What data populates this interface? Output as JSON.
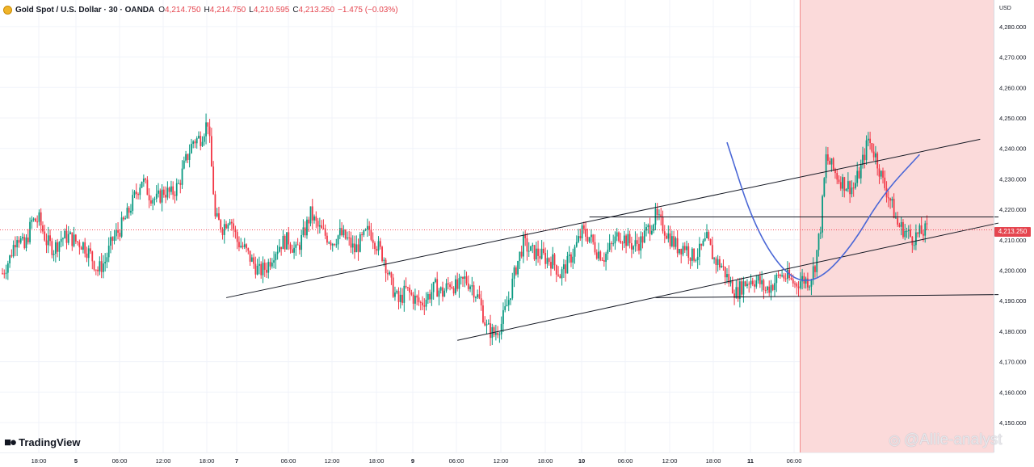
{
  "header": {
    "title": "Gold Spot / U.S. Dollar · 30 · OANDA",
    "open_key": "O",
    "open": "4,214.750",
    "high_key": "H",
    "high": "4,214.750",
    "low_key": "L",
    "low": "4,210.595",
    "close_key": "C",
    "close": "4,213.250",
    "change": "−1.475 (−0.03%)"
  },
  "axis": {
    "currency": "USD"
  },
  "last_price_label": "4,213.250",
  "branding": {
    "logo_text": "TradingView",
    "watermark": "@Allie-analyst"
  },
  "colors": {
    "up": "#089981",
    "down": "#f23645",
    "projection": "#4a67d6",
    "zone": "#fbdada"
  },
  "chart_data": {
    "type": "candlestick",
    "title": "Gold Spot / U.S. Dollar · 30 · OANDA",
    "xlabel": "",
    "ylabel": "",
    "ylim": [
      4145000,
      4290000
    ],
    "y_ticks": [
      4150000,
      4160000,
      4170000,
      4180000,
      4190000,
      4200000,
      4210000,
      4220000,
      4230000,
      4240000,
      4250000,
      4260000,
      4270000,
      4280000
    ],
    "y_tick_labels": [
      "4,150.000",
      "4,160.000",
      "4,170.000",
      "4,180.000",
      "4,190.000",
      "4,200.000",
      "4,210.000",
      "4,220.000",
      "4,230.000",
      "4,240.000",
      "4,250.000",
      "4,260.000",
      "4,270.000",
      "4,280.000"
    ],
    "x_ticks": [
      "18:00",
      "5",
      "06:00",
      "12:00",
      "18:00",
      "7",
      "06:00",
      "12:00",
      "18:00",
      "9",
      "06:00",
      "12:00",
      "18:00",
      "10",
      "06:00",
      "12:00",
      "18:00",
      "11",
      "06:00"
    ],
    "last_price": 4213250,
    "close_path": [
      [
        0,
        4199000
      ],
      [
        4,
        4204000
      ],
      [
        8,
        4212000
      ],
      [
        12,
        4207000
      ],
      [
        16,
        4216000
      ],
      [
        20,
        4216500
      ],
      [
        24,
        4209500
      ],
      [
        28,
        4207000
      ],
      [
        32,
        4210500
      ],
      [
        36,
        4211000
      ],
      [
        40,
        4209500
      ],
      [
        44,
        4208500
      ],
      [
        48,
        4205000
      ],
      [
        52,
        4200000
      ],
      [
        56,
        4203000
      ],
      [
        60,
        4210000
      ],
      [
        64,
        4213500
      ],
      [
        68,
        4218000
      ],
      [
        72,
        4224000
      ],
      [
        76,
        4230000
      ],
      [
        80,
        4225000
      ],
      [
        84,
        4223000
      ],
      [
        88,
        4226000
      ],
      [
        92,
        4225000
      ],
      [
        96,
        4228000
      ],
      [
        100,
        4236000
      ],
      [
        104,
        4242500
      ],
      [
        108,
        4243500
      ],
      [
        112,
        4249000
      ],
      [
        115,
        4226000
      ],
      [
        116,
        4217000
      ],
      [
        120,
        4214000
      ],
      [
        124,
        4218000
      ],
      [
        128,
        4209500
      ],
      [
        132,
        4207000
      ],
      [
        136,
        4203000
      ],
      [
        140,
        4199500
      ],
      [
        144,
        4201000
      ],
      [
        148,
        4206000
      ],
      [
        152,
        4209000
      ],
      [
        156,
        4210000
      ],
      [
        160,
        4206000
      ],
      [
        164,
        4211500
      ],
      [
        168,
        4218500
      ],
      [
        172,
        4214000
      ],
      [
        176,
        4211500
      ],
      [
        180,
        4209500
      ],
      [
        184,
        4212000
      ],
      [
        188,
        4210000
      ],
      [
        192,
        4206500
      ],
      [
        196,
        4210000
      ],
      [
        200,
        4213500
      ],
      [
        204,
        4208500
      ],
      [
        208,
        4204000
      ],
      [
        212,
        4195000
      ],
      [
        216,
        4189500
      ],
      [
        220,
        4193500
      ],
      [
        224,
        4191000
      ],
      [
        228,
        4189000
      ],
      [
        232,
        4191500
      ],
      [
        236,
        4194500
      ],
      [
        240,
        4192500
      ],
      [
        244,
        4196000
      ],
      [
        248,
        4194000
      ],
      [
        252,
        4197000
      ],
      [
        256,
        4195000
      ],
      [
        260,
        4190000
      ],
      [
        264,
        4181000
      ],
      [
        268,
        4179000
      ],
      [
        272,
        4182500
      ],
      [
        276,
        4190500
      ],
      [
        280,
        4201000
      ],
      [
        284,
        4209000
      ],
      [
        288,
        4206000
      ],
      [
        292,
        4205500
      ],
      [
        296,
        4204000
      ],
      [
        300,
        4203000
      ],
      [
        304,
        4198500
      ],
      [
        308,
        4202000
      ],
      [
        312,
        4207000
      ],
      [
        316,
        4212500
      ],
      [
        320,
        4211000
      ],
      [
        324,
        4206500
      ],
      [
        328,
        4204500
      ],
      [
        332,
        4208000
      ],
      [
        336,
        4212000
      ],
      [
        340,
        4210000
      ],
      [
        344,
        4208000
      ],
      [
        348,
        4209500
      ],
      [
        352,
        4213500
      ],
      [
        356,
        4217500
      ],
      [
        360,
        4214500
      ],
      [
        364,
        4210500
      ],
      [
        368,
        4207500
      ],
      [
        372,
        4208000
      ],
      [
        376,
        4204500
      ],
      [
        380,
        4206000
      ],
      [
        384,
        4210000
      ],
      [
        388,
        4203500
      ],
      [
        392,
        4201500
      ],
      [
        396,
        4196500
      ],
      [
        400,
        4192500
      ],
      [
        404,
        4195500
      ],
      [
        408,
        4197000
      ],
      [
        412,
        4196500
      ],
      [
        416,
        4193500
      ],
      [
        420,
        4195500
      ],
      [
        424,
        4198500
      ],
      [
        428,
        4197500
      ],
      [
        432,
        4195500
      ],
      [
        436,
        4197000
      ],
      [
        440,
        4196500
      ],
      [
        443,
        4202000
      ],
      [
        446,
        4214500
      ],
      [
        449,
        4237000
      ],
      [
        452,
        4234000
      ],
      [
        456,
        4230000
      ],
      [
        460,
        4228000
      ],
      [
        464,
        4227000
      ],
      [
        468,
        4233500
      ],
      [
        472,
        4243000
      ],
      [
        476,
        4237500
      ],
      [
        480,
        4229000
      ],
      [
        484,
        4223000
      ],
      [
        488,
        4215000
      ],
      [
        492,
        4213000
      ],
      [
        496,
        4210500
      ],
      [
        500,
        4212000
      ],
      [
        504,
        4213250
      ]
    ]
  }
}
